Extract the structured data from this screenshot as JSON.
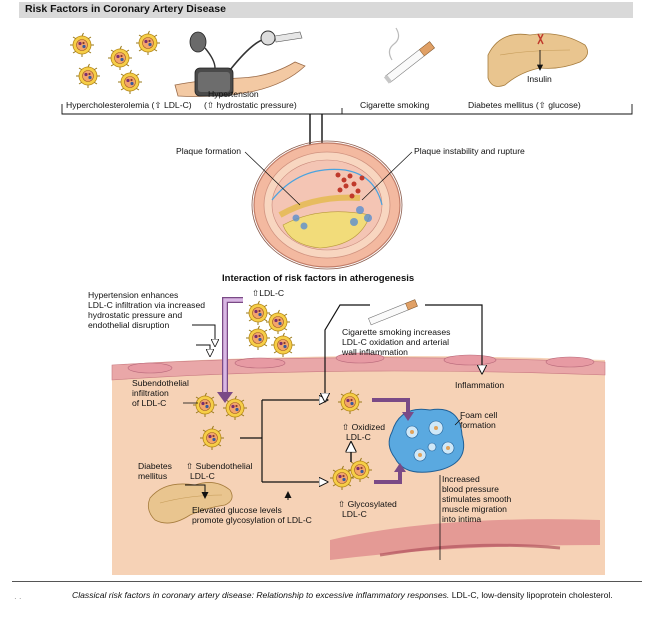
{
  "title": "Risk Factors in Coronary Artery Disease",
  "top_labels": {
    "hypercholesterolemia": "Hypercholesterolemia (⇧ LDL-C)",
    "hypertension_title": "Hypertension",
    "hypertension_sub": "(⇧ hydrostatic pressure)",
    "smoking": "Cigarette smoking",
    "diabetes": "Diabetes mellitus (⇧ glucose)",
    "insulin": "Insulin"
  },
  "artery_labels": {
    "plaque_formation": "Plaque formation",
    "plaque_rupture": "Plaque instability and rupture"
  },
  "section_heading": "Interaction of risk factors in atherogenesis",
  "lower_labels": {
    "htn_enhances_1": "Hypertension enhances",
    "htn_enhances_2": "LDL-C infiltration via increased",
    "htn_enhances_3": "hydrostatic pressure and",
    "htn_enhances_4": "endothelial disruption",
    "ldl_c": "⇧LDL-C",
    "smoking_1": "Cigarette smoking increases",
    "smoking_2": "LDL-C oxidation and arterial",
    "smoking_3": "wall inflammation",
    "inflammation": "Inflammation",
    "subendo_1": "Subendothelial",
    "subendo_2": "infiltration",
    "subendo_3": "of LDL-C",
    "oxidized_1": "⇧ Oxidized",
    "oxidized_2": "LDL-C",
    "foam_1": "Foam cell",
    "foam_2": "formation",
    "diabetes_1": "Diabetes",
    "diabetes_2": "mellitus",
    "subendo_ldl_1": "⇧ Subendothelial",
    "subendo_ldl_2": "LDL-C",
    "glucose_1": "Elevated glucose levels",
    "glucose_2": "promote glycosylation of LDL-C",
    "glyco_1": "⇧ Glycosylated",
    "glyco_2": "LDL-C",
    "bp_1": "Increased",
    "bp_2": "blood pressure",
    "bp_3": "stimulates smooth",
    "bp_4": "muscle migration",
    "bp_5": "into intima"
  },
  "caption": {
    "italic": "Classical risk factors in coronary artery disease: Relationship to excessive inflammatory responses.",
    "normal": " LDL-C, low-density lipoprotein cholesterol."
  },
  "colors": {
    "title_bg": "#d9d9d9",
    "tissue": "#f4c8a8",
    "endothelium": "#e8a0a6",
    "arrow_purple": "#7a4a86",
    "ldl_yellow": "#f1d54a",
    "foam_blue": "#4aa3df"
  }
}
